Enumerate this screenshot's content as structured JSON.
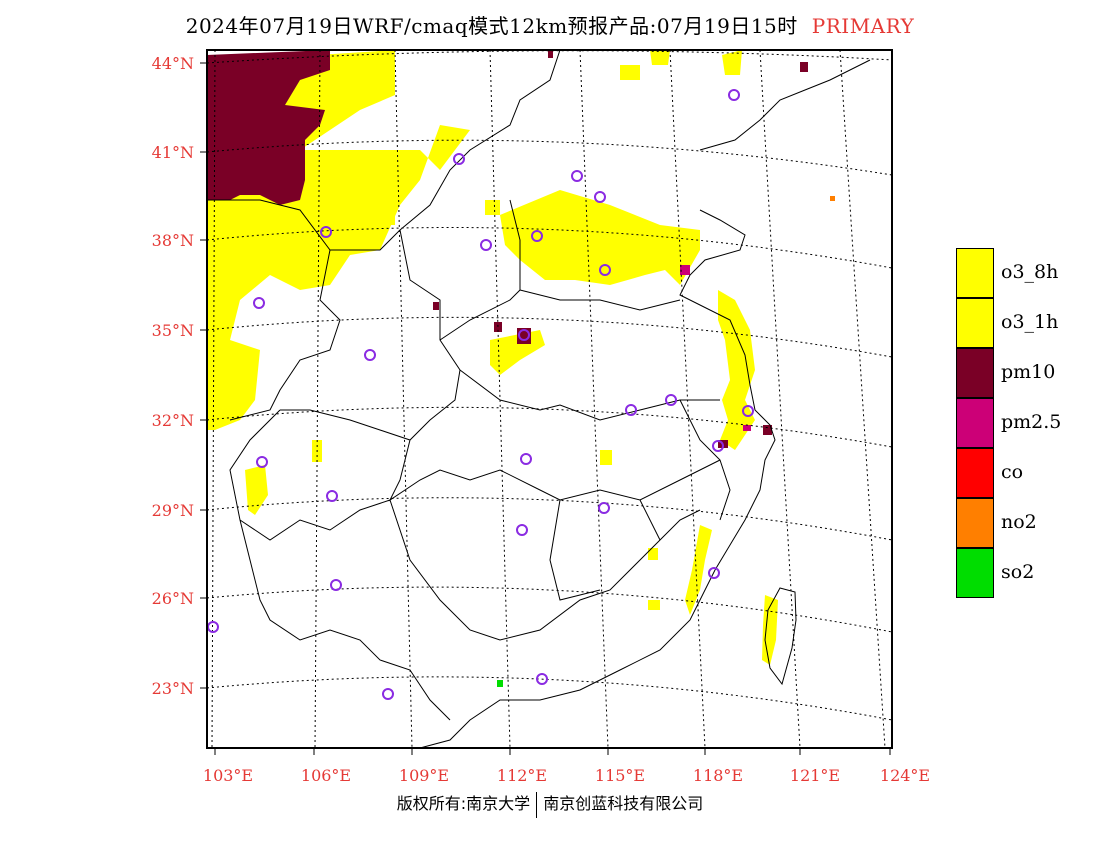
{
  "title": {
    "text": "2024年07月19日WRF/cmaq模式12km预报产品:07月19日15时",
    "tag": "PRIMARY"
  },
  "axes": {
    "lat_labels": [
      "44°N",
      "41°N",
      "38°N",
      "35°N",
      "32°N",
      "29°N",
      "26°N",
      "23°N"
    ],
    "lon_labels": [
      "103°E",
      "106°E",
      "109°E",
      "112°E",
      "115°E",
      "118°E",
      "121°E",
      "124°E"
    ],
    "label_color": "#e53935"
  },
  "legend": {
    "items": [
      {
        "label": "o3_8h",
        "color": "#ffff00"
      },
      {
        "label": "o3_1h",
        "color": "#ffff00"
      },
      {
        "label": "pm10",
        "color": "#7a0026"
      },
      {
        "label": "pm2.5",
        "color": "#cc0077"
      },
      {
        "label": "co",
        "color": "#ff0000"
      },
      {
        "label": "no2",
        "color": "#ff7f00"
      },
      {
        "label": "so2",
        "color": "#00dd00"
      }
    ]
  },
  "colors": {
    "o3": "#ffff00",
    "pm10": "#7a0026",
    "pm25": "#cc0077",
    "no2": "#ff7f00",
    "so2": "#00dd00",
    "station": "#8a2be2"
  },
  "copyright": {
    "left": "版权所有:南京大学",
    "right": "南京创蓝科技有限公司"
  }
}
